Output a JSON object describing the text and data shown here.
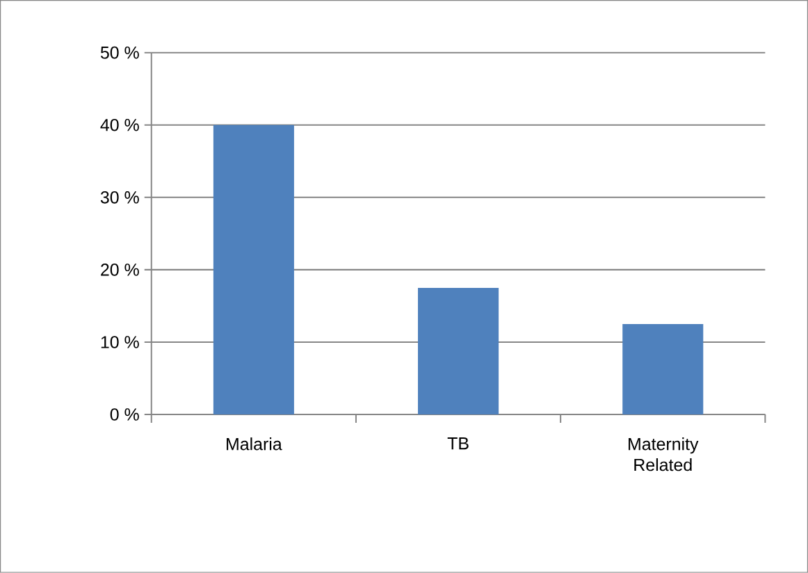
{
  "chart_data": {
    "type": "bar",
    "categories": [
      "Malaria",
      "TB",
      "Maternity Related"
    ],
    "values": [
      40,
      17.5,
      12.5
    ],
    "color": "#4f81bd",
    "ylim": [
      0,
      50
    ],
    "yticks": [
      {
        "value": 0,
        "label": "0 %"
      },
      {
        "value": 10,
        "label": "10 %"
      },
      {
        "value": 20,
        "label": "20 %"
      },
      {
        "value": 30,
        "label": "30 %"
      },
      {
        "value": 40,
        "label": "40 %"
      },
      {
        "value": 50,
        "label": "50 %"
      }
    ],
    "grid": "y"
  }
}
